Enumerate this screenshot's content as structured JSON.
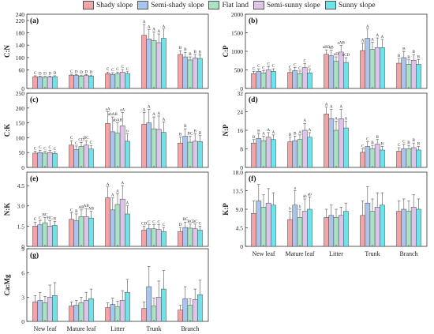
{
  "legend": [
    {
      "label": "Shady slope",
      "color": "#f4a3a6"
    },
    {
      "label": "Semi-shady slope",
      "color": "#a9c5ec"
    },
    {
      "label": "Flat land",
      "color": "#a8e3c6"
    },
    {
      "label": "Semi-sunny slope",
      "color": "#dfc4ea"
    },
    {
      "label": "Sunny slope",
      "color": "#6fe3ea"
    }
  ],
  "chart_data": [
    {
      "type": "bar",
      "panel": "(a)",
      "ylabel": "C:N",
      "ylim": [
        0,
        240
      ],
      "yticks": [
        0,
        60,
        100,
        140,
        180,
        220,
        240
      ],
      "categories": [
        "New leaf",
        "Mature leaf",
        "Litter",
        "Trunk",
        "Branch"
      ],
      "series": [
        {
          "name": "Shady slope",
          "values": [
            38,
            43,
            48,
            172,
            110
          ],
          "errors": [
            3,
            3,
            5,
            35,
            12
          ],
          "letters": [
            "C",
            "C",
            "C",
            "A",
            "B"
          ]
        },
        {
          "name": "Semi-shady slope",
          "values": [
            37,
            42,
            45,
            160,
            102
          ],
          "errors": [
            3,
            3,
            6,
            30,
            15
          ],
          "letters": [
            "D",
            "D",
            "C",
            "A",
            "B"
          ]
        },
        {
          "name": "Flat land",
          "values": [
            36,
            40,
            47,
            155,
            92
          ],
          "errors": [
            3,
            3,
            6,
            28,
            10
          ],
          "letters": [
            "D",
            "D",
            "C",
            "A",
            "B"
          ]
        },
        {
          "name": "Semi-sunny slope",
          "values": [
            37,
            42,
            53,
            148,
            98
          ],
          "errors": [
            3,
            3,
            8,
            28,
            12
          ],
          "letters": [
            "D",
            "D",
            "C",
            "A",
            "B"
          ]
        },
        {
          "name": "Sunny slope",
          "values": [
            38,
            40,
            48,
            162,
            97
          ],
          "errors": [
            3,
            3,
            6,
            30,
            12
          ],
          "letters": [
            "D",
            "D",
            "C",
            "A",
            "B"
          ]
        }
      ]
    },
    {
      "type": "bar",
      "panel": "(b)",
      "ylabel": "C:P",
      "ylim": [
        0,
        2000
      ],
      "yticks": [
        0,
        500,
        1000,
        1500,
        2000
      ],
      "categories": [
        "New leaf",
        "Mature leaf",
        "Litter",
        "Trunk",
        "Branch"
      ],
      "series": [
        {
          "name": "Shady slope",
          "values": [
            400,
            430,
            920,
            1020,
            680
          ],
          "errors": [
            60,
            70,
            120,
            200,
            130
          ],
          "letters": [
            "C",
            "C",
            "aBD",
            "A",
            "B"
          ]
        },
        {
          "name": "Semi-shady slope",
          "values": [
            460,
            480,
            880,
            1350,
            830
          ],
          "errors": [
            70,
            80,
            150,
            250,
            160
          ],
          "letters": [
            "C",
            "C",
            "aB",
            "A",
            "B"
          ]
        },
        {
          "name": "Flat land",
          "values": [
            420,
            400,
            730,
            1050,
            650
          ],
          "errors": [
            60,
            70,
            120,
            200,
            120
          ],
          "letters": [
            "C",
            "C",
            "aD",
            "A",
            "B"
          ]
        },
        {
          "name": "Semi-sunny slope",
          "values": [
            500,
            560,
            980,
            1100,
            760
          ],
          "errors": [
            90,
            110,
            180,
            260,
            150
          ],
          "letters": [
            "C",
            "C",
            "aAB",
            "A",
            "B"
          ]
        },
        {
          "name": "Sunny slope",
          "values": [
            460,
            420,
            700,
            1100,
            650
          ],
          "errors": [
            70,
            80,
            130,
            220,
            130
          ],
          "letters": [
            "C",
            "C",
            "bCD",
            "A",
            "B"
          ]
        }
      ]
    },
    {
      "type": "bar",
      "panel": "(c)",
      "ylabel": "C:K",
      "ylim": [
        0,
        250
      ],
      "yticks": [
        0,
        50,
        100,
        150,
        200,
        250
      ],
      "categories": [
        "New leaf",
        "Mature leaf",
        "Litter",
        "Trunk",
        "Branch"
      ],
      "series": [
        {
          "name": "Shady slope",
          "values": [
            48,
            75,
            148,
            145,
            82
          ],
          "errors": [
            6,
            15,
            40,
            40,
            20
          ],
          "letters": [
            "C",
            "C",
            "aA",
            "A",
            "B"
          ]
        },
        {
          "name": "Semi-shady slope",
          "values": [
            50,
            60,
            120,
            150,
            105
          ],
          "errors": [
            8,
            12,
            50,
            45,
            25
          ],
          "letters": [
            "C",
            "C",
            "abAB",
            "A",
            "B"
          ]
        },
        {
          "name": "Flat land",
          "values": [
            48,
            70,
            115,
            130,
            85
          ],
          "errors": [
            6,
            14,
            35,
            40,
            20
          ],
          "letters": [
            "C",
            "CD",
            "abAB",
            "A",
            "BC"
          ]
        },
        {
          "name": "Semi-sunny slope",
          "values": [
            50,
            75,
            140,
            128,
            88
          ],
          "errors": [
            8,
            15,
            45,
            45,
            25
          ],
          "letters": [
            "C",
            "BC",
            "aA",
            "A",
            "B"
          ]
        },
        {
          "name": "Sunny slope",
          "values": [
            47,
            62,
            88,
            118,
            87
          ],
          "errors": [
            6,
            12,
            25,
            35,
            20
          ],
          "letters": [
            "C",
            "C",
            "b",
            "A",
            "B"
          ]
        }
      ]
    },
    {
      "type": "bar",
      "panel": "(d)",
      "ylabel": "N:P",
      "ylim": [
        0,
        32
      ],
      "yticks": [
        0,
        8,
        16,
        24,
        32
      ],
      "categories": [
        "New leaf",
        "Mature leaf",
        "Litter",
        "Trunk",
        "Branch"
      ],
      "series": [
        {
          "name": "Shady slope",
          "values": [
            10.5,
            11,
            23,
            6.5,
            7
          ],
          "errors": [
            1.5,
            2,
            3,
            1.5,
            1.5
          ],
          "letters": [
            "B",
            "B",
            "A",
            "C",
            "C"
          ]
        },
        {
          "name": "Semi-shady slope",
          "values": [
            12.5,
            11.5,
            21,
            9,
            8
          ],
          "errors": [
            2,
            2,
            4,
            2,
            2
          ],
          "letters": [
            "B",
            "B",
            "A",
            "C",
            "C"
          ]
        },
        {
          "name": "Flat land",
          "values": [
            11.5,
            12,
            16,
            8,
            8
          ],
          "errors": [
            2,
            2,
            4,
            1.5,
            1.5
          ],
          "letters": [
            "A",
            "A",
            "A",
            "B",
            "B"
          ]
        },
        {
          "name": "Semi-sunny slope",
          "values": [
            13,
            16,
            21,
            10,
            8.5
          ],
          "errors": [
            2,
            3,
            4,
            2,
            2
          ],
          "letters": [
            "A",
            "A",
            "A",
            "B",
            "B"
          ]
        },
        {
          "name": "Sunny slope",
          "values": [
            12,
            13,
            17,
            7.5,
            7.5
          ],
          "errors": [
            2,
            2,
            3,
            1.5,
            1.5
          ],
          "letters": [
            "A",
            "A",
            "A",
            "B",
            "B"
          ]
        }
      ]
    },
    {
      "type": "bar",
      "panel": "(e)",
      "ylabel": "N:K",
      "ylim": [
        0,
        5.5
      ],
      "yticks": [
        0,
        1.5,
        3.0,
        4.5
      ],
      "categories": [
        "New leaf",
        "Mature leaf",
        "Litter",
        "Trunk",
        "Branch"
      ],
      "series": [
        {
          "name": "Shady slope",
          "values": [
            1.5,
            2.0,
            3.6,
            1.2,
            1.1
          ],
          "errors": [
            0.3,
            0.5,
            0.8,
            0.3,
            0.3
          ],
          "letters": [
            "C",
            "C",
            "A",
            "CD",
            "D"
          ]
        },
        {
          "name": "Semi-shady slope",
          "values": [
            1.6,
            1.9,
            2.7,
            1.3,
            1.4
          ],
          "errors": [
            0.3,
            0.5,
            0.9,
            0.3,
            0.4
          ],
          "letters": [
            "C",
            "B",
            "A",
            "C",
            "BC"
          ]
        },
        {
          "name": "Flat land",
          "values": [
            1.75,
            2.2,
            3.1,
            1.3,
            1.35
          ],
          "errors": [
            0.4,
            0.5,
            0.8,
            0.3,
            0.3
          ],
          "letters": [
            "BC",
            "AB",
            "A",
            "C",
            "BC"
          ]
        },
        {
          "name": "Semi-sunny slope",
          "values": [
            1.5,
            2.2,
            3.5,
            1.25,
            1.3
          ],
          "errors": [
            0.4,
            0.6,
            1.0,
            0.35,
            0.35
          ],
          "letters": [
            "BC",
            "AB",
            "A",
            "C",
            "BC"
          ]
        },
        {
          "name": "Sunny slope",
          "values": [
            1.55,
            2.1,
            2.4,
            1.1,
            1.2
          ],
          "errors": [
            0.3,
            0.5,
            0.6,
            0.3,
            0.3
          ],
          "letters": [
            "B",
            "AB",
            "A",
            "C",
            "C"
          ]
        }
      ]
    },
    {
      "type": "bar",
      "panel": "(f)",
      "ylabel": "K:P",
      "ylim": [
        0,
        18
      ],
      "yticks": [
        0,
        4.5,
        9.0,
        13.5,
        18.0
      ],
      "categories": [
        "New leaf",
        "Mature leaf",
        "Litter",
        "Trunk",
        "Branch"
      ],
      "series": [
        {
          "name": "Shady slope",
          "values": [
            8.0,
            6.5,
            7.0,
            7.5,
            8.5
          ],
          "errors": [
            3,
            2,
            2,
            3.5,
            2.5
          ],
          "letters": [
            "",
            "b",
            "",
            "",
            ""
          ]
        },
        {
          "name": "Semi-shady slope",
          "values": [
            11.0,
            10.0,
            7.5,
            10.5,
            9.0
          ],
          "errors": [
            4,
            3.5,
            2.5,
            4,
            2.5
          ],
          "letters": [
            "",
            "a",
            "",
            "",
            ""
          ]
        },
        {
          "name": "Flat land",
          "values": [
            9.5,
            7.0,
            7.0,
            8.5,
            8.5
          ],
          "errors": [
            3,
            2,
            2,
            3,
            2.5
          ],
          "letters": [
            "",
            "b",
            "",
            "",
            ""
          ]
        },
        {
          "name": "Semi-sunny slope",
          "values": [
            10.5,
            8.5,
            7.5,
            9.5,
            9.5
          ],
          "errors": [
            3.5,
            3,
            2,
            3.5,
            3
          ],
          "letters": [
            "",
            "ab",
            "",
            "",
            ""
          ]
        },
        {
          "name": "Sunny slope",
          "values": [
            10.0,
            9.0,
            8.5,
            10.0,
            9.0
          ],
          "errors": [
            3,
            3,
            2,
            3,
            2.5
          ],
          "letters": [
            "",
            "ab",
            "",
            "",
            ""
          ]
        }
      ]
    },
    {
      "type": "bar",
      "panel": "(g)",
      "ylabel": "Ca:Mg",
      "ylim": [
        0,
        9
      ],
      "yticks": [
        0,
        3,
        6,
        9
      ],
      "categories": [
        "New leaf",
        "Mature leaf",
        "Litter",
        "Trunk",
        "Branch"
      ],
      "series": [
        {
          "name": "Shady slope",
          "values": [
            2.4,
            1.9,
            1.7,
            1.6,
            1.4
          ],
          "errors": [
            0.8,
            0.5,
            0.6,
            0.8,
            0.6
          ],
          "letters": [
            "",
            "",
            "",
            "",
            ""
          ]
        },
        {
          "name": "Semi-shady slope",
          "values": [
            2.6,
            2.0,
            2.1,
            4.3,
            2.8
          ],
          "errors": [
            1.0,
            0.6,
            0.8,
            2.5,
            1.5
          ],
          "letters": [
            "",
            "",
            "",
            "",
            ""
          ]
        },
        {
          "name": "Flat land",
          "values": [
            2.3,
            2.3,
            1.8,
            1.9,
            2.0
          ],
          "errors": [
            0.8,
            0.7,
            0.7,
            1.0,
            0.8
          ],
          "letters": [
            "",
            "",
            "",
            "",
            ""
          ]
        },
        {
          "name": "Semi-sunny slope",
          "values": [
            3.0,
            2.6,
            2.6,
            3.0,
            2.7
          ],
          "errors": [
            1.5,
            1.0,
            1.2,
            2.0,
            1.3
          ],
          "letters": [
            "",
            "",
            "",
            "",
            ""
          ]
        },
        {
          "name": "Sunny slope",
          "values": [
            3.2,
            2.8,
            3.6,
            4.0,
            3.3
          ],
          "errors": [
            1.6,
            1.2,
            1.6,
            2.3,
            1.8
          ],
          "letters": [
            "",
            "",
            "",
            "",
            ""
          ]
        }
      ]
    }
  ]
}
